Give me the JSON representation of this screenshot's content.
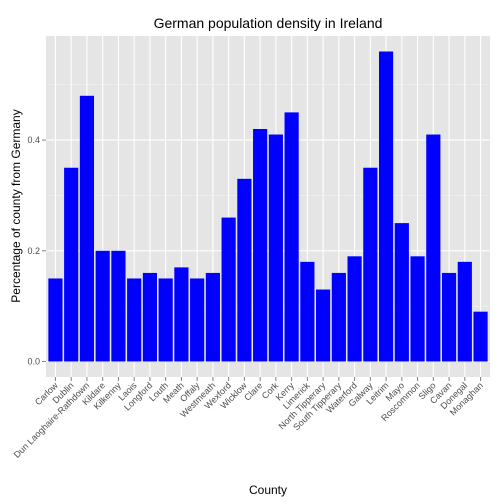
{
  "chart_data": {
    "type": "bar",
    "title": "German population density in Ireland",
    "xlabel": "County",
    "ylabel": "Percentage of county from Germany",
    "categories": [
      "Carlow",
      "Dublin",
      "Dun Laoghaire-Rathdown",
      "Kildare",
      "Kilkenny",
      "Laois",
      "Longford",
      "Louth",
      "Meath",
      "Offaly",
      "Westmeath",
      "Wexford",
      "Wicklow",
      "Clare",
      "Cork",
      "Kerry",
      "Limerick",
      "North Tipperary",
      "South Tipperary",
      "Waterford",
      "Galway",
      "Leitrim",
      "Mayo",
      "Roscommon",
      "Sligo",
      "Cavan",
      "Donegal",
      "Monaghan"
    ],
    "values": [
      0.15,
      0.35,
      0.48,
      0.2,
      0.2,
      0.15,
      0.16,
      0.15,
      0.17,
      0.15,
      0.16,
      0.26,
      0.33,
      0.42,
      0.41,
      0.45,
      0.18,
      0.13,
      0.16,
      0.19,
      0.35,
      0.56,
      0.25,
      0.19,
      0.41,
      0.16,
      0.18,
      0.09
    ],
    "ylim": [
      -0.028,
      0.588
    ],
    "yticks": [
      0.0,
      0.2,
      0.4
    ],
    "ytick_labels": [
      "0.0",
      "0.2",
      "0.4"
    ],
    "grid": true,
    "colors": {
      "bar": "#0000ff",
      "panel": "#e5e5e5",
      "grid_major": "#ffffff",
      "grid_minor": "#f2f2f2"
    }
  }
}
